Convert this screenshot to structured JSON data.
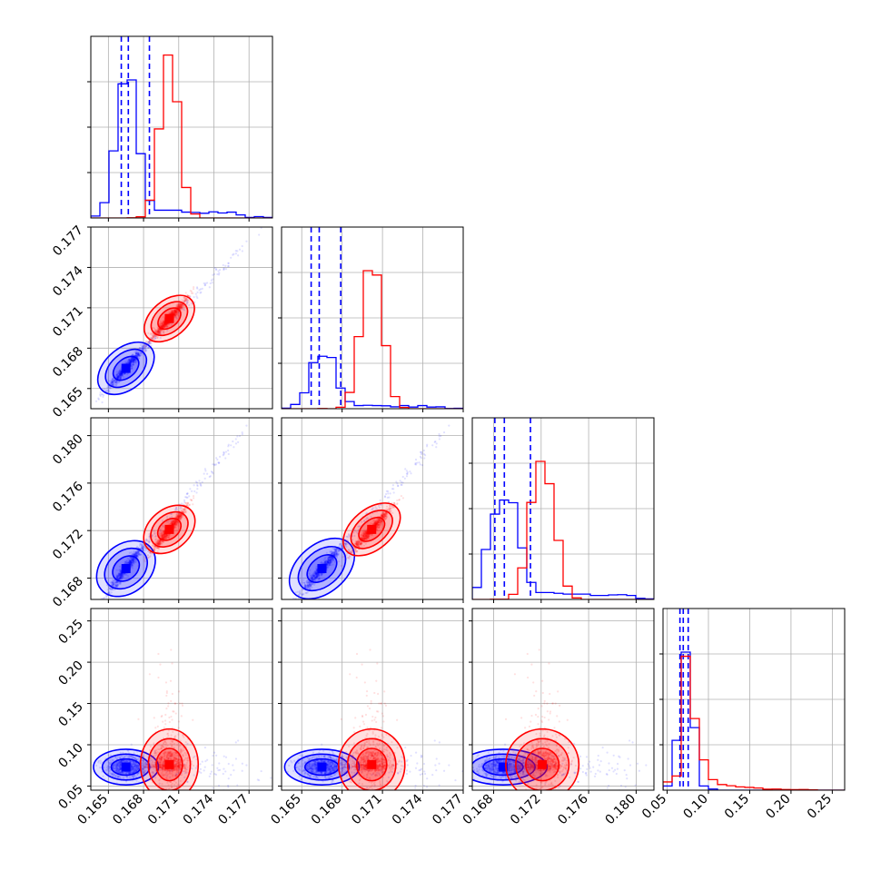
{
  "chart_data": {
    "type": "corner",
    "title": "",
    "grid": true,
    "legend": "none",
    "colors": {
      "red": "#ff0000",
      "blue": "#0000ff",
      "frame": "#000000",
      "grid": "#b0b0b0"
    },
    "parameters": [
      {
        "range": [
          0.1635,
          0.179
        ],
        "ticks": [
          0.165,
          0.168,
          0.171,
          0.174,
          0.177
        ],
        "tick_labels": [
          "0.165",
          "0.168",
          "0.171",
          "0.174",
          "0.177"
        ]
      },
      {
        "range": [
          0.1635,
          0.177
        ],
        "ticks": [
          0.165,
          0.168,
          0.171,
          0.174,
          0.177
        ],
        "tick_labels": [
          "0.165",
          "0.168",
          "0.171",
          "0.174",
          "0.177"
        ]
      },
      {
        "range": [
          0.1662,
          0.1815
        ],
        "ticks": [
          0.168,
          0.172,
          0.176,
          0.18
        ],
        "tick_labels": [
          "0.168",
          "0.172",
          "0.176",
          "0.180"
        ]
      },
      {
        "range": [
          0.045,
          0.265
        ],
        "ticks": [
          0.05,
          0.1,
          0.15,
          0.2,
          0.25
        ],
        "tick_labels": [
          "0.05",
          "0.10",
          "0.15",
          "0.20",
          "0.25"
        ]
      }
    ],
    "series": [
      {
        "color": "#0000ff",
        "means": [
          0.1665,
          0.1665,
          0.1688,
          0.073
        ],
        "sds": [
          0.0009,
          0.0009,
          0.0012,
          0.007
        ],
        "tail": [
          0.0105,
          0.0095,
          0.012,
          0.011
        ],
        "quantiles": [
          [
            0.1661,
            0.1667,
            0.1685
          ],
          [
            0.1657,
            0.1663,
            0.1679
          ],
          [
            0.1681,
            0.1689,
            0.1711
          ],
          [
            0.0655,
            0.0695,
            0.0755
          ]
        ],
        "hist_peaks": [
          1.0,
          0.38,
          0.72,
          1.0
        ]
      },
      {
        "color": "#ff0000",
        "means": [
          0.1702,
          0.1702,
          0.1721,
          0.076
        ],
        "sds": [
          0.0008,
          0.0008,
          0.001,
          0.014
        ],
        "tail": [
          0,
          0,
          0,
          0
        ],
        "quantiles": [],
        "hist_peaks": [
          1.18,
          1.0,
          1.0,
          0.97
        ]
      }
    ]
  }
}
